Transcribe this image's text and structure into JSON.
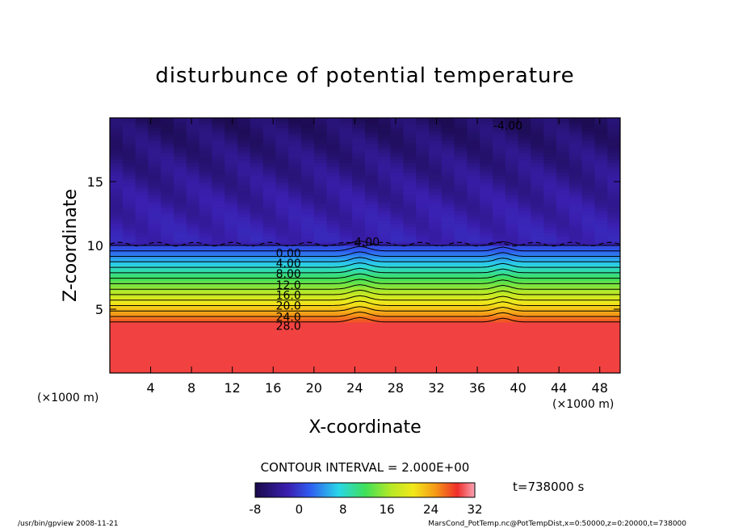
{
  "chart_data": {
    "type": "heatmap",
    "title": "disturbunce of potential temperature",
    "xlabel": "X-coordinate",
    "ylabel": "Z-coordinate",
    "x_unit": "(×1000 m)",
    "y_unit": "(×1000 m)",
    "xlim": [
      0,
      50
    ],
    "ylim": [
      0,
      20
    ],
    "x_ticks": [
      4,
      8,
      12,
      16,
      20,
      24,
      28,
      32,
      36,
      40,
      44,
      48
    ],
    "y_ticks": [
      5,
      10,
      15
    ],
    "contour_interval": "CONTOUR INTERVAL = 2.000E+00",
    "time": "t=738000 s",
    "colorbar": {
      "min": -8,
      "max": 32,
      "ticks": [
        -8,
        0,
        8,
        16,
        24,
        32
      ]
    },
    "contour_labels": [
      {
        "x": 17.5,
        "y": 9.4,
        "text": "0.00"
      },
      {
        "x": 17.5,
        "y": 8.6,
        "text": "4.00"
      },
      {
        "x": 17.5,
        "y": 7.8,
        "text": "8.00"
      },
      {
        "x": 17.5,
        "y": 6.9,
        "text": "12.0"
      },
      {
        "x": 17.5,
        "y": 6.1,
        "text": "16.0"
      },
      {
        "x": 17.5,
        "y": 5.3,
        "text": "20.0"
      },
      {
        "x": 17.5,
        "y": 4.4,
        "text": "24.0"
      },
      {
        "x": 17.5,
        "y": 3.7,
        "text": "28.0"
      },
      {
        "x": 25.0,
        "y": 10.3,
        "text": "-4.00"
      },
      {
        "x": 39.0,
        "y": 19.4,
        "text": "-4.00"
      }
    ],
    "grid": false
  },
  "footer": {
    "left": "/usr/bin/gpview   2008-11-21",
    "right": "MarsCond_PotTemp.nc@PotTempDist,x=0:50000,z=0:20000,t=738000"
  }
}
